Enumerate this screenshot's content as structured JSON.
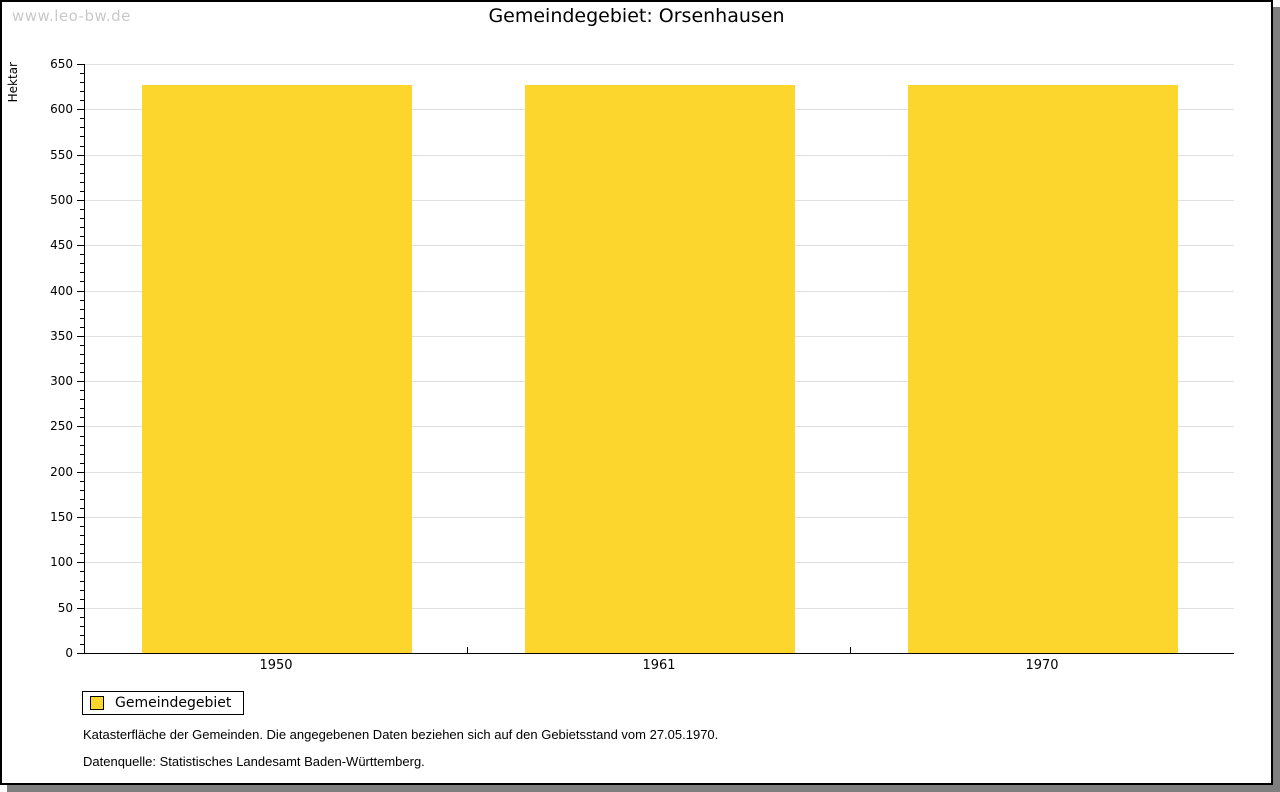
{
  "watermark": "www.leo-bw.de",
  "title": "Gemeindegebiet: Orsenhausen",
  "y_axis_label": "Hektar",
  "legend": {
    "items": [
      {
        "label": "Gemeindegebiet",
        "color": "#fcd52d"
      }
    ]
  },
  "footer": {
    "line1": "Katasterfläche der Gemeinden. Die angegebenen Daten beziehen sich auf den Gebietsstand vom 27.05.1970.",
    "line2": "Datenquelle: Statistisches Landesamt Baden-Württemberg."
  },
  "chart_data": {
    "type": "bar",
    "title": "Gemeindegebiet: Orsenhausen",
    "categories": [
      "1950",
      "1961",
      "1970"
    ],
    "series": [
      {
        "name": "Gemeindegebiet",
        "values": [
          627,
          627,
          627
        ],
        "color": "#fcd52d"
      }
    ],
    "xlabel": "",
    "ylabel": "Hektar",
    "ylim": [
      0,
      650
    ],
    "y_major_step": 50,
    "y_minor_step": 10,
    "grid": true,
    "legend_position": "bottom-left"
  }
}
